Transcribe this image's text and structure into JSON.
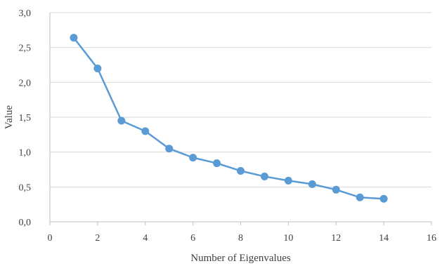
{
  "chart_data": {
    "type": "line",
    "title": "",
    "xlabel": "Number of Eigenvalues",
    "ylabel": "Value",
    "xlim": [
      0,
      16
    ],
    "ylim": [
      0,
      3.0
    ],
    "x_ticks": [
      "0",
      "2",
      "4",
      "6",
      "8",
      "10",
      "12",
      "14",
      "16"
    ],
    "y_ticks": [
      "0,0",
      "0,5",
      "1,0",
      "1,5",
      "2,0",
      "2,5",
      "3,0"
    ],
    "grid": "horizontal",
    "legend": "none",
    "series": [
      {
        "color": "#5b9bd5",
        "x": [
          1,
          2,
          3,
          4,
          5,
          6,
          7,
          8,
          9,
          10,
          11,
          12,
          13,
          14
        ],
        "y": [
          2.64,
          2.2,
          1.45,
          1.3,
          1.05,
          0.92,
          0.84,
          0.73,
          0.65,
          0.59,
          0.54,
          0.46,
          0.35,
          0.33
        ]
      }
    ]
  }
}
